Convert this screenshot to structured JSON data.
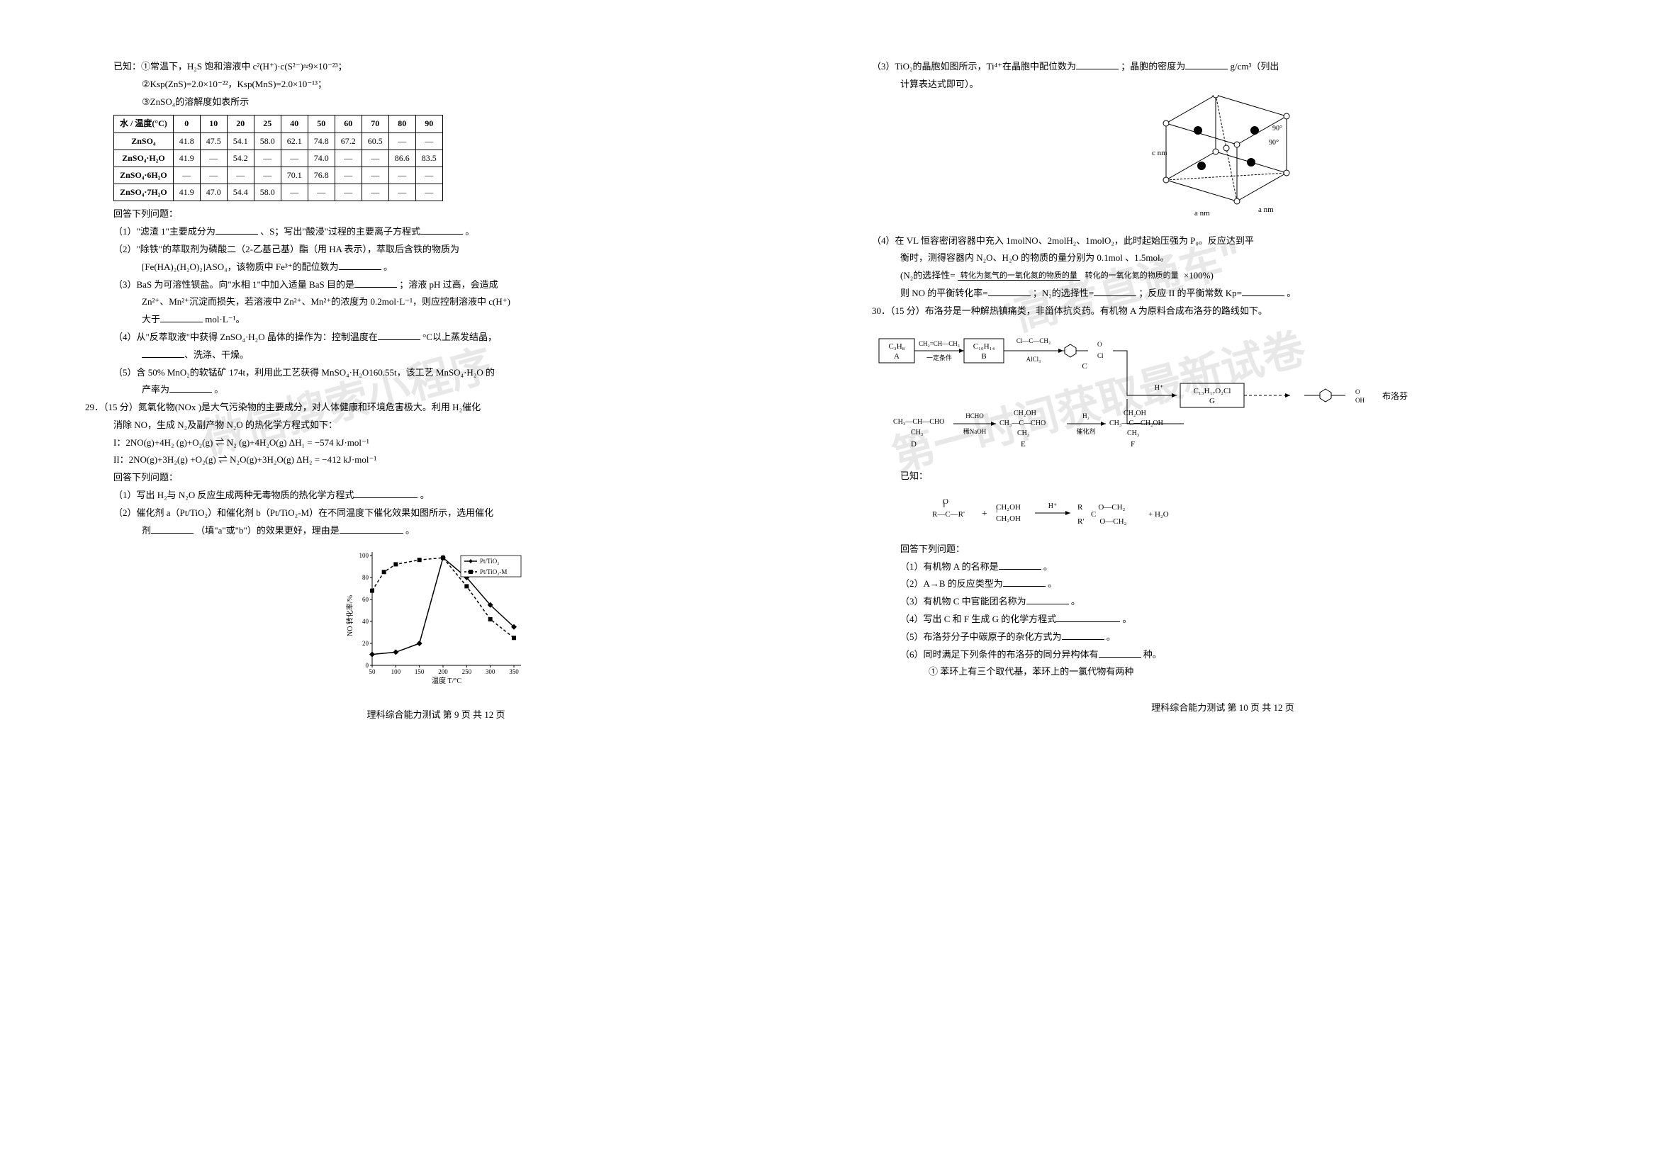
{
  "watermarks": {
    "wm1": "微信搜索小程序",
    "wm2": "\"高考直通车\"",
    "wm3": "第一时间获取最新试卷"
  },
  "left": {
    "given_intro": "已知：①常温下，H₂S 饱和溶液中 c²(H⁺)·c(S²⁻)≈9×10⁻²³；",
    "given2": "②Ksp(ZnS)=2.0×10⁻²²，Ksp(MnS)=2.0×10⁻¹³；",
    "given3": "③ZnSO₄的溶解度如表所示",
    "table": {
      "header": [
        "水 / 温度(°C)",
        "0",
        "10",
        "20",
        "25",
        "40",
        "50",
        "60",
        "70",
        "80",
        "90"
      ],
      "rows": [
        [
          "ZnSO₄",
          "41.8",
          "47.5",
          "54.1",
          "58.0",
          "62.1",
          "74.8",
          "67.2",
          "60.5",
          "—",
          "—"
        ],
        [
          "ZnSO₄·H₂O",
          "41.9",
          "—",
          "54.2",
          "—",
          "—",
          "74.0",
          "—",
          "—",
          "86.6",
          "83.5"
        ],
        [
          "ZnSO₄·6H₂O",
          "—",
          "—",
          "—",
          "—",
          "70.1",
          "76.8",
          "—",
          "—",
          "—",
          "—"
        ],
        [
          "ZnSO₄·7H₂O",
          "41.9",
          "47.0",
          "54.4",
          "58.0",
          "—",
          "—",
          "—",
          "—",
          "—",
          "—"
        ]
      ]
    },
    "answer_header": "回答下列问题：",
    "q1": "（1）\"滤渣 1\"主要成分为",
    "q1_mid": "、S；写出\"酸浸\"过程的主要离子方程式",
    "q1_end": "。",
    "q2a": "（2）\"除铁\"的萃取剂为磷酸二（2-乙基己基）酯（用 HA 表示），萃取后含铁的物质为",
    "q2b": "[Fe(HA)₂(H₂O)₂]ASO₄，该物质中 Fe³⁺的配位数为",
    "q2b_end": "。",
    "q3a": "（3）BaS 为可溶性钡盐。向\"水相 1\"中加入适量 BaS 目的是",
    "q3a_end": "；溶液 pH 过高，会造成",
    "q3b": "Zn²⁺、Mn²⁺沉淀而损失，若溶液中 Zn²⁺、Mn²⁺的浓度为 0.2mol·L⁻¹，则应控制溶液中 c(H⁺)",
    "q3c": "大于",
    "q3c_end": "mol·L⁻¹。",
    "q4a": "（4）从\"反萃取液\"中获得 ZnSO₄·H₂O 晶体的操作为：控制温度在",
    "q4a_end": "°C以上蒸发结晶，",
    "q4b": "、洗涤、干燥。",
    "q5a": "（5）含 50% MnO₂的软锰矿 174t，利用此工艺获得 MnSO₄·H₂O160.55t，该工艺 MnSO₄·H₂O 的",
    "q5b": "产率为",
    "q5b_end": "。",
    "q29_intro": "29．（15 分）氮氧化物(NOx )是大气污染物的主要成分，对人体健康和环境危害极大。利用 H₂催化",
    "q29_line2": "消除 NO，生成 N₂及副产物 N₂O 的热化学方程式如下：",
    "q29_eq1": "I：2NO(g)+4H₂ (g)+O₂(g) ⇌ N₂ (g)+4H₂O(g)      ΔH₁ = −574 kJ·mol⁻¹",
    "q29_eq2": "II：2NO(g)+3H₂(g) +O₂(g) ⇌ N₂O(g)+3H₂O(g)    ΔH₂ = −412 kJ·mol⁻¹",
    "q29_ans": "回答下列问题：",
    "q29_1": "（1）写出 H₂与 N₂O 反应生成两种无毒物质的热化学方程式",
    "q29_1_end": "。",
    "q29_2a": "（2）催化剂 a（Pt/TiO₂）和催化剂 b（Pt/TiO₂-M）在不同温度下催化效果如图所示，选用催化",
    "q29_2b": "剂",
    "q29_2b_mid": "（填\"a\"或\"b\"）的效果更好，理由是",
    "q29_2b_end": "。",
    "chart": {
      "ylabel": "NO 转化率/%",
      "xlabel": "温度 T/°C",
      "xticks": [
        "50",
        "100",
        "150",
        "200",
        "250",
        "300",
        "350"
      ],
      "yticks": [
        "0",
        "20",
        "40",
        "60",
        "80",
        "100"
      ],
      "legend": [
        "Pt/TiO₂",
        "Pt/TiO₂-M"
      ],
      "series1": [
        [
          50,
          10
        ],
        [
          100,
          12
        ],
        [
          150,
          20
        ],
        [
          200,
          98
        ],
        [
          250,
          80
        ],
        [
          300,
          55
        ],
        [
          350,
          35
        ]
      ],
      "series2": [
        [
          50,
          68
        ],
        [
          75,
          85
        ],
        [
          100,
          92
        ],
        [
          150,
          96
        ],
        [
          200,
          98
        ],
        [
          250,
          72
        ],
        [
          300,
          42
        ],
        [
          350,
          25
        ]
      ]
    },
    "footer": "理科综合能力测试  第 9 页  共 12 页"
  },
  "right": {
    "q3_tio2": "（3）TiO₂的晶胞如图所示，Ti⁴⁺在晶胞中配位数为",
    "q3_mid": "；晶胞的密度为",
    "q3_end": "g/cm³（列出",
    "q3_line2": "计算表达式即可）。",
    "crystal_labels": {
      "a": "a nm",
      "c": "c nm",
      "angle": "90°"
    },
    "q4a": "（4）在 VL 恒容密闭容器中充入 1molNO、2molH₂、1molO₂，此时起始压强为 P₀。反应达到平",
    "q4b": "衡时，测得容器内 N₂O、H₂O 的物质的量分别为 0.1mol 、1.5mol。",
    "q4_formula_intro": "(N₂的选择性=",
    "q4_formula_num": "转化为氮气的一氧化氮的物质的量",
    "q4_formula_den": "转化的一氧化氮的物质的量",
    "q4_formula_end": "×100%)",
    "q4_line": "则 NO 的平衡转化率=",
    "q4_mid": "；N₂的选择性=",
    "q4_mid2": "；反应 II 的平衡常数 Kp=",
    "q4_end": "。",
    "q30_intro": "30．（15 分）布洛芬是一种解热镇痛类，非甾体抗炎药。有机物 A 为原料合成布洛芬的路线如下。",
    "flow": {
      "A": "C₃H₈",
      "A_label": "A",
      "AB_top": "CH₂=CH—CH₃",
      "AB_bot": "一定条件",
      "B": "C₁₀H₁₄",
      "B_label": "B",
      "BC_top": "Cl—C—CH₃",
      "BC_bot": "AlCl₃",
      "C_label": "C",
      "G": "C₁₃H₁₇O₂Cl",
      "G_label": "G",
      "H_plus": "H⁺",
      "product": "布洛芬",
      "D_label": "D",
      "E_label": "E",
      "F_label": "F",
      "DE_top": "HCHO",
      "DE_bot": "稀NaOH",
      "EF_top": "H₂",
      "EF_bot": "催化剂"
    },
    "known": "已知：",
    "known_eq_left": "R—C—R'",
    "known_eq_plus": "+",
    "known_eq_mid": "CH₂OH\nCH₂OH",
    "known_eq_arrow": "H⁺",
    "known_eq_right": "+ H₂O",
    "ans_header": "回答下列问题：",
    "r1": "（1）有机物 A 的名称是",
    "r1_end": "。",
    "r2": "（2）A→B 的反应类型为",
    "r2_end": "。",
    "r3": "（3）有机物 C 中官能团名称为",
    "r3_end": "。",
    "r4": "（4）写出 C 和 F 生成 G 的化学方程式",
    "r4_end": "。",
    "r5": "（5）布洛芬分子中碳原子的杂化方式为",
    "r5_end": "。",
    "r6": "（6）同时满足下列条件的布洛芬的同分异构体有",
    "r6_end": "种。",
    "r6_sub": "① 苯环上有三个取代基，苯环上的一氯代物有两种",
    "footer": "理科综合能力测试  第 10 页  共 12 页"
  }
}
